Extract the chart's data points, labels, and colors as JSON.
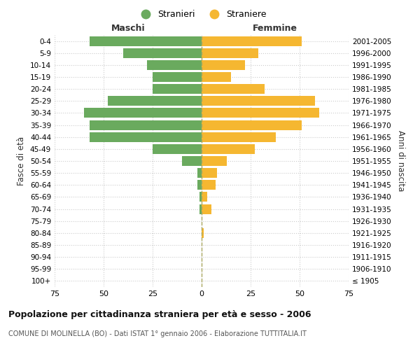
{
  "age_groups": [
    "100+",
    "95-99",
    "90-94",
    "85-89",
    "80-84",
    "75-79",
    "70-74",
    "65-69",
    "60-64",
    "55-59",
    "50-54",
    "45-49",
    "40-44",
    "35-39",
    "30-34",
    "25-29",
    "20-24",
    "15-19",
    "10-14",
    "5-9",
    "0-4"
  ],
  "birth_years": [
    "≤ 1905",
    "1906-1910",
    "1911-1915",
    "1916-1920",
    "1921-1925",
    "1926-1930",
    "1931-1935",
    "1936-1940",
    "1941-1945",
    "1946-1950",
    "1951-1955",
    "1956-1960",
    "1961-1965",
    "1966-1970",
    "1971-1975",
    "1976-1980",
    "1981-1985",
    "1986-1990",
    "1991-1995",
    "1996-2000",
    "2001-2005"
  ],
  "males": [
    0,
    0,
    0,
    0,
    0,
    0,
    1,
    1,
    2,
    2,
    10,
    25,
    57,
    57,
    60,
    48,
    25,
    25,
    28,
    40,
    57
  ],
  "females": [
    0,
    0,
    0,
    0,
    1,
    0,
    5,
    3,
    7,
    8,
    13,
    27,
    38,
    51,
    60,
    58,
    32,
    15,
    22,
    29,
    51
  ],
  "male_color": "#6aaa5e",
  "female_color": "#f5b731",
  "background_color": "#ffffff",
  "grid_color": "#cccccc",
  "title": "Popolazione per cittadinanza straniera per età e sesso - 2006",
  "subtitle": "COMUNE DI MOLINELLA (BO) - Dati ISTAT 1° gennaio 2006 - Elaborazione TUTTITALIA.IT",
  "xlabel_left": "Maschi",
  "xlabel_right": "Femmine",
  "ylabel_left": "Fasce di età",
  "ylabel_right": "Anni di nascita",
  "legend_males": "Stranieri",
  "legend_females": "Straniere",
  "xlim": 75,
  "xtick_vals": [
    -75,
    -50,
    -25,
    0,
    25,
    50,
    75
  ],
  "xtick_labels": [
    "75",
    "50",
    "25",
    "0",
    "25",
    "50",
    "75"
  ]
}
